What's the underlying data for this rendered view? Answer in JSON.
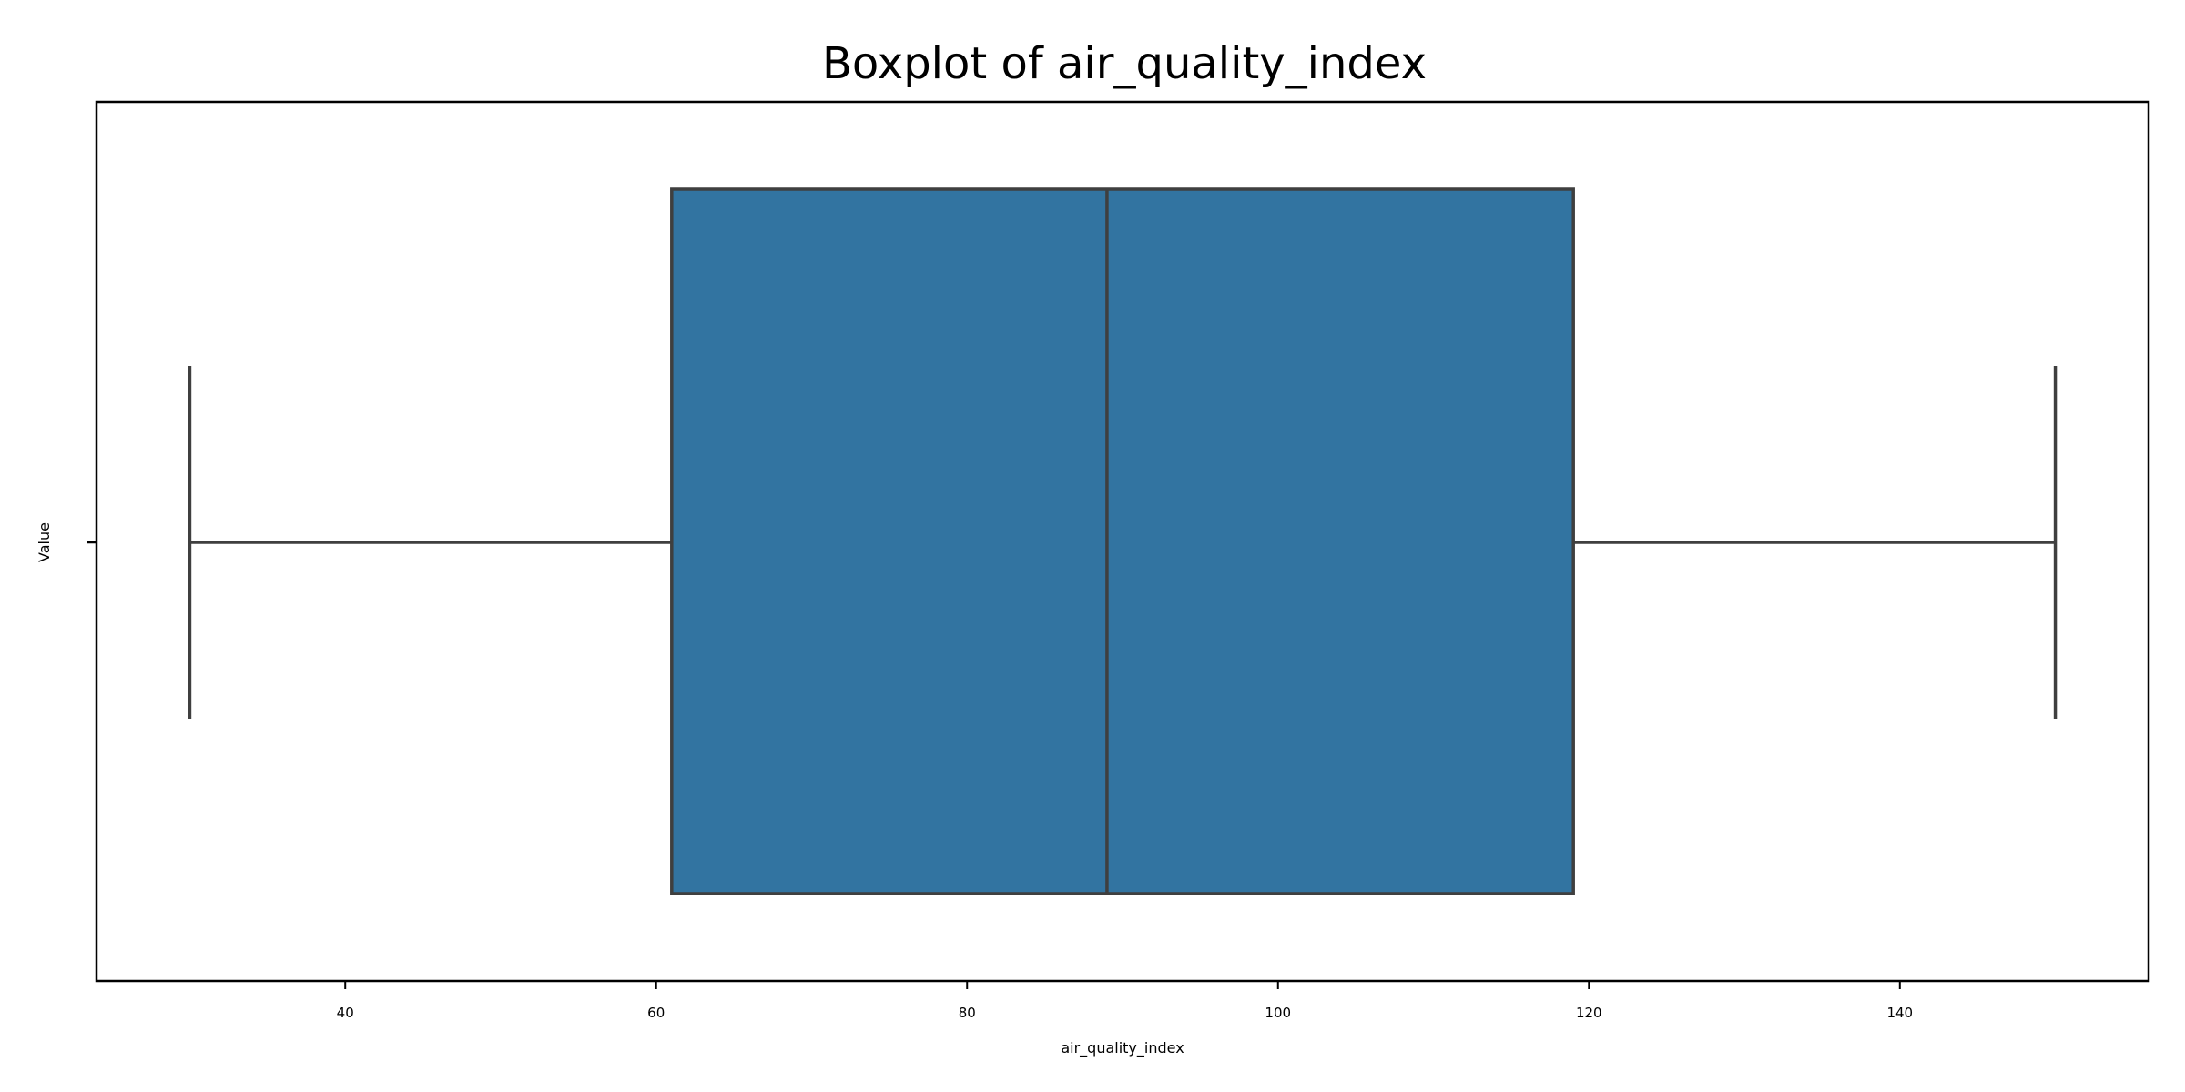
{
  "chart_data": {
    "type": "boxplot",
    "title": "Boxplot of air_quality_index",
    "xlabel": "air_quality_index",
    "ylabel": "Value",
    "orientation": "horizontal",
    "xlim": [
      24,
      156
    ],
    "xticks": [
      40,
      60,
      80,
      100,
      120,
      140
    ],
    "xtick_labels": [
      "40",
      "60",
      "80",
      "100",
      "120",
      "140"
    ],
    "grid": false,
    "box": {
      "whisker_low": 30,
      "q1": 61,
      "median": 89,
      "q3": 119,
      "whisker_high": 150
    },
    "colors": {
      "box_fill": "#3274a1",
      "line": "#3f3f3f",
      "frame": "#000000"
    }
  }
}
